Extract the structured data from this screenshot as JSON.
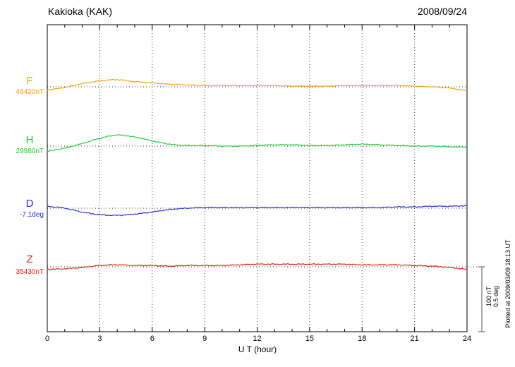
{
  "header": {
    "title": "Kakioka (KAK)",
    "date": "2008/09/24"
  },
  "xaxis": {
    "label": "U T (hour)",
    "ticks": [
      "0",
      "3",
      "6",
      "9",
      "12",
      "15",
      "18",
      "21",
      "24"
    ]
  },
  "traces": [
    {
      "id": "F",
      "label": "F",
      "value_label": "46420nT",
      "color": "#f5a400"
    },
    {
      "id": "H",
      "label": "H",
      "value_label": "29980nT",
      "color": "#21cc3a"
    },
    {
      "id": "D",
      "label": "D",
      "value_label": "-7.1deg",
      "color": "#2233cc"
    },
    {
      "id": "Z",
      "label": "Z",
      "value_label": "35430nT",
      "color": "#dd2211"
    }
  ],
  "scale_bar": {
    "line1": "100 nT",
    "line2": "0.5 deg"
  },
  "plotted_note": "Plotted at 2009/03/09 18:13 UT",
  "chart_data": {
    "type": "line",
    "title": "Kakioka (KAK) 2008/09/24",
    "xlabel": "U T (hour)",
    "x": [
      0,
      1,
      2,
      3,
      4,
      5,
      6,
      7,
      8,
      9,
      10,
      11,
      12,
      13,
      14,
      15,
      16,
      17,
      18,
      19,
      20,
      21,
      22,
      23,
      24
    ],
    "xlim": [
      0,
      24
    ],
    "grid": "dotted vertical lines every 3 h; dotted horizontal baseline per trace",
    "legend_position": "left-margin trace labels",
    "scale": {
      "nT_per_division": 100,
      "deg_per_division": 0.5
    },
    "series": [
      {
        "name": "F",
        "unit": "nT",
        "baseline": 46420,
        "color": "#f5a400",
        "offsets": [
          -5,
          -1,
          5,
          9,
          11,
          8,
          6,
          4,
          3,
          2,
          2,
          2,
          2,
          2,
          1,
          1,
          1,
          2,
          2,
          2,
          2,
          1,
          0,
          -2,
          -6
        ]
      },
      {
        "name": "H",
        "unit": "nT",
        "baseline": 29980,
        "color": "#21cc3a",
        "offsets": [
          -8,
          -3,
          4,
          12,
          17,
          14,
          8,
          3,
          1,
          1,
          0,
          0,
          1,
          2,
          2,
          1,
          1,
          2,
          3,
          2,
          1,
          0,
          0,
          -1,
          -2
        ]
      },
      {
        "name": "D",
        "unit": "deg",
        "baseline": -7.1,
        "color": "#2233cc",
        "offsets": [
          0.015,
          0,
          -0.03,
          -0.05,
          -0.055,
          -0.045,
          -0.03,
          -0.01,
          0,
          0.005,
          0.005,
          0.005,
          0.005,
          0.005,
          0.005,
          0.005,
          0.005,
          0.005,
          0.005,
          0.005,
          0.01,
          0.01,
          0.015,
          0.015,
          0.02
        ]
      },
      {
        "name": "Z",
        "unit": "nT",
        "baseline": 35430,
        "color": "#dd2211",
        "offsets": [
          -4,
          -3,
          -1,
          2,
          3,
          2,
          2,
          1,
          2,
          2,
          2,
          3,
          4,
          4,
          4,
          4,
          4,
          4,
          3,
          3,
          3,
          2,
          1,
          -1,
          -4
        ]
      }
    ]
  }
}
